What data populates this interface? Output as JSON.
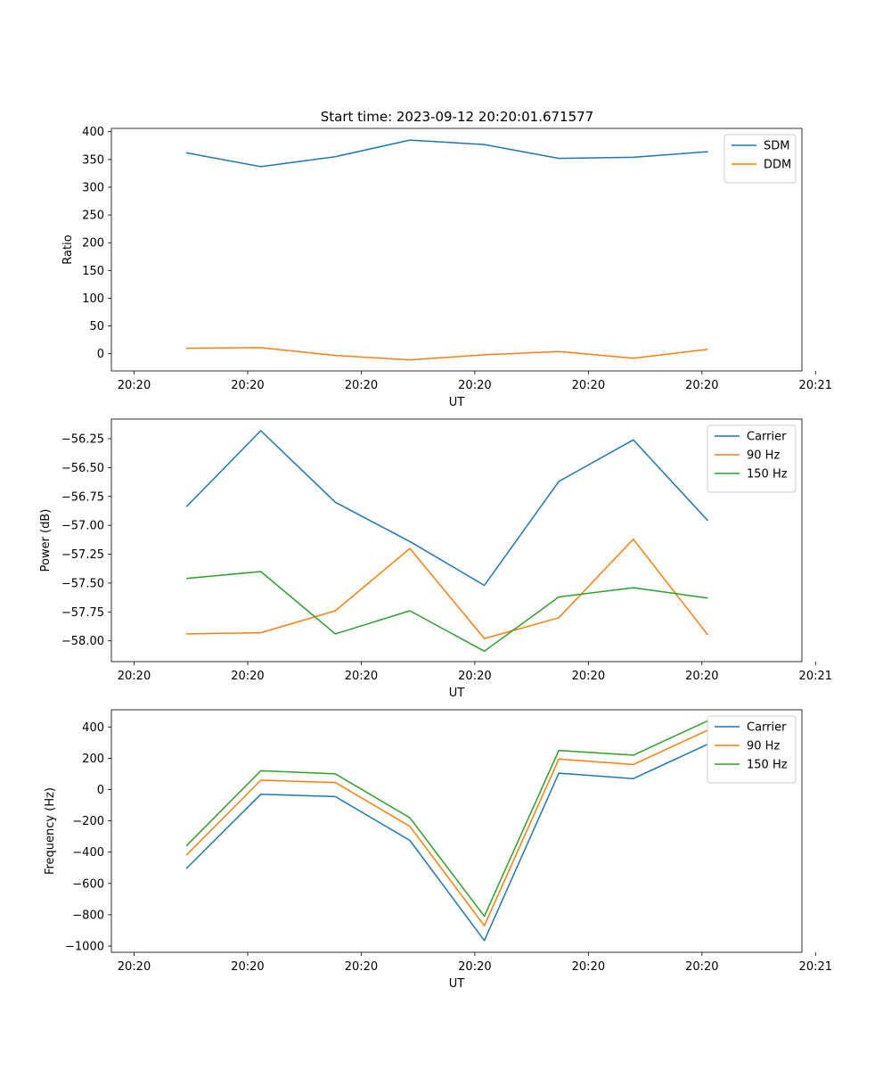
{
  "figure_title": "Start time: 2023-09-12 20:20:01.671577",
  "colors": {
    "blue": "#1f77b4",
    "orange": "#ff7f0e",
    "green": "#2ca02c"
  },
  "chart_data": [
    {
      "type": "line",
      "title": "Start time: 2023-09-12 20:20:01.671577",
      "xlabel": "UT",
      "ylabel": "Ratio",
      "xlim": [
        0,
        3.04
      ],
      "ylim": [
        -31,
        406
      ],
      "xticks": [
        0.1,
        0.6,
        1.1,
        1.6,
        2.1,
        2.6,
        3.1
      ],
      "xtick_labels": [
        "20:20",
        "20:20",
        "20:20",
        "20:20",
        "20:20",
        "20:20",
        "20:21"
      ],
      "yticks": [
        0,
        50,
        100,
        150,
        200,
        250,
        300,
        350,
        400
      ],
      "ytick_labels": [
        "0",
        "50",
        "100",
        "150",
        "200",
        "250",
        "300",
        "350",
        "400"
      ],
      "legend": "top-right",
      "x": [
        0.33,
        0.658,
        0.986,
        1.314,
        1.642,
        1.97,
        2.298,
        2.626
      ],
      "series": [
        {
          "name": "SDM",
          "color": "#1f77b4",
          "values": [
            362,
            337,
            355,
            385,
            377,
            352,
            354,
            364
          ]
        },
        {
          "name": "DDM",
          "color": "#ff7f0e",
          "values": [
            10,
            11,
            -3,
            -11,
            -2,
            4,
            -8,
            8
          ]
        }
      ]
    },
    {
      "type": "line",
      "xlabel": "UT",
      "ylabel": "Power (dB)",
      "xlim": [
        0,
        3.04
      ],
      "ylim": [
        -58.18,
        -56.08
      ],
      "xticks": [
        0.1,
        0.6,
        1.1,
        1.6,
        2.1,
        2.6,
        3.1
      ],
      "xtick_labels": [
        "20:20",
        "20:20",
        "20:20",
        "20:20",
        "20:20",
        "20:20",
        "20:21"
      ],
      "yticks": [
        -58.0,
        -57.75,
        -57.5,
        -57.25,
        -57.0,
        -56.75,
        -56.5,
        -56.25
      ],
      "ytick_labels": [
        "−58.00",
        "−57.75",
        "−57.50",
        "−57.25",
        "−57.00",
        "−56.75",
        "−56.50",
        "−56.25"
      ],
      "legend": "top-right",
      "x": [
        0.33,
        0.658,
        0.986,
        1.314,
        1.642,
        1.97,
        2.298,
        2.626
      ],
      "series": [
        {
          "name": "Carrier",
          "color": "#1f77b4",
          "values": [
            -56.84,
            -56.18,
            -56.8,
            -57.14,
            -57.52,
            -56.62,
            -56.26,
            -56.96
          ]
        },
        {
          "name": "90 Hz",
          "color": "#ff7f0e",
          "values": [
            -57.94,
            -57.93,
            -57.74,
            -57.2,
            -57.98,
            -57.8,
            -57.12,
            -57.95
          ]
        },
        {
          "name": "150 Hz",
          "color": "#2ca02c",
          "values": [
            -57.46,
            -57.4,
            -57.94,
            -57.74,
            -58.09,
            -57.62,
            -57.54,
            -57.63
          ]
        }
      ]
    },
    {
      "type": "line",
      "xlabel": "UT",
      "ylabel": "Frequency (Hz)",
      "xlim": [
        0,
        3.04
      ],
      "ylim": [
        -1040,
        510
      ],
      "xticks": [
        0.1,
        0.6,
        1.1,
        1.6,
        2.1,
        2.6,
        3.1
      ],
      "xtick_labels": [
        "20:20",
        "20:20",
        "20:20",
        "20:20",
        "20:20",
        "20:20",
        "20:21"
      ],
      "yticks": [
        -1000,
        -800,
        -600,
        -400,
        -200,
        0,
        200,
        400
      ],
      "ytick_labels": [
        "−1000",
        "−800",
        "−600",
        "−400",
        "−200",
        "0",
        "200",
        "400"
      ],
      "legend": "top-right",
      "x": [
        0.33,
        0.658,
        0.986,
        1.314,
        1.642,
        1.97,
        2.298,
        2.626
      ],
      "series": [
        {
          "name": "Carrier",
          "color": "#1f77b4",
          "values": [
            -505,
            -30,
            -45,
            -325,
            -965,
            105,
            70,
            290
          ]
        },
        {
          "name": "90 Hz",
          "color": "#ff7f0e",
          "values": [
            -420,
            60,
            45,
            -235,
            -870,
            195,
            160,
            380
          ]
        },
        {
          "name": "150 Hz",
          "color": "#2ca02c",
          "values": [
            -360,
            120,
            100,
            -180,
            -810,
            250,
            220,
            440
          ]
        }
      ]
    }
  ]
}
